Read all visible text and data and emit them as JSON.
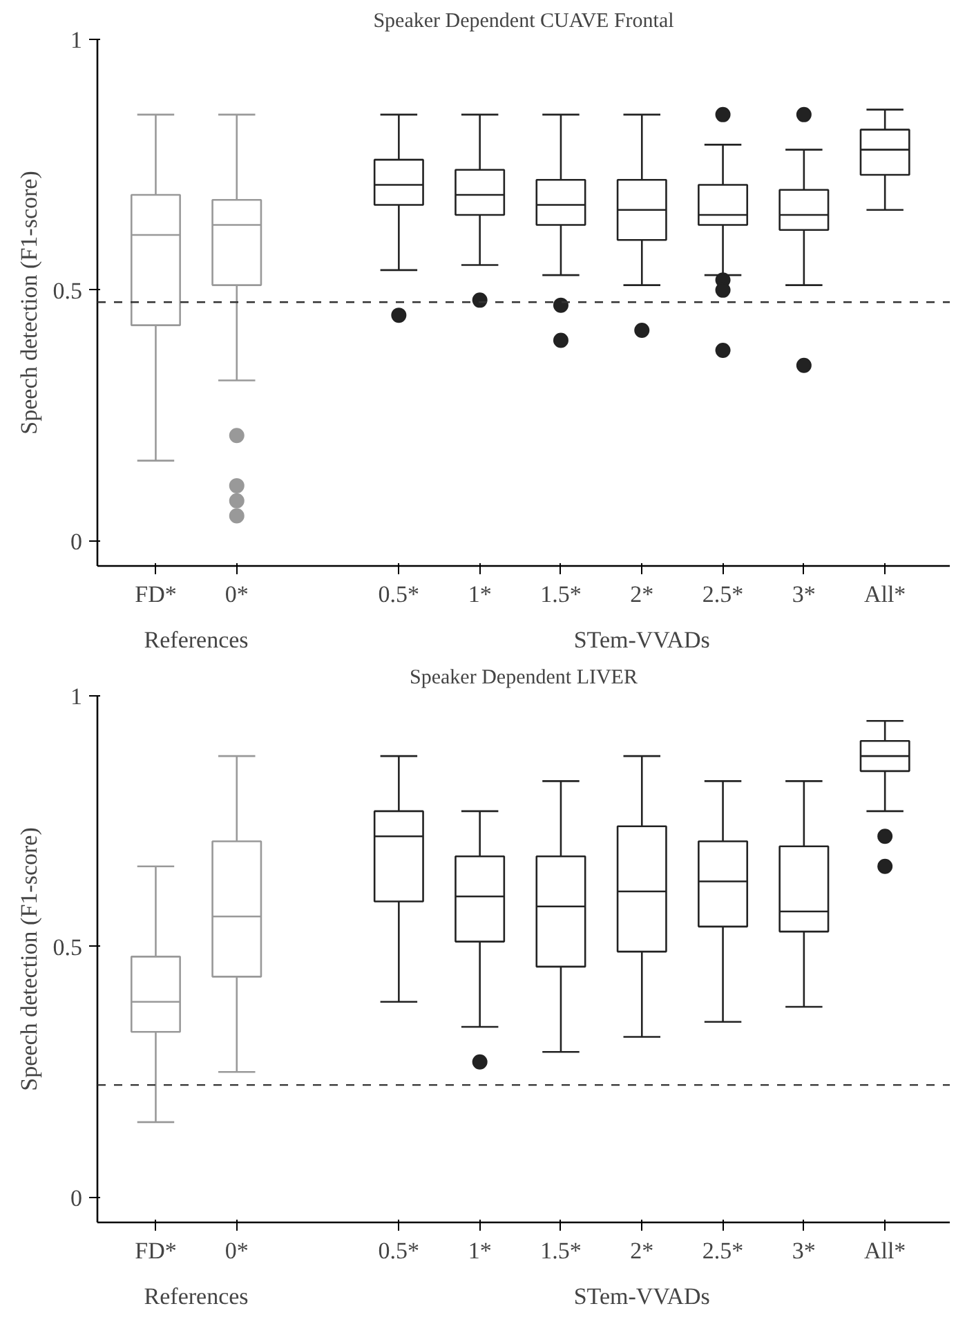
{
  "chart_data": [
    {
      "type": "box",
      "title": "Speaker Dependent CUAVE Frontal",
      "ylabel": "Speech detection (F1-score)",
      "categories": [
        "FD*",
        "0*",
        "0.5*",
        "1*",
        "1.5*",
        "2*",
        "2.5*",
        "3*",
        "All*"
      ],
      "ylim": [
        -0.05,
        1
      ],
      "yticks": [
        0,
        0.5,
        1
      ],
      "grid": false,
      "annotations": [
        "References",
        "STem-VVADs"
      ],
      "ref_lines": [
        {
          "axis": "y",
          "value": 0.476,
          "line_style": "dashed",
          "color": "#333333"
        }
      ],
      "series": [
        {
          "color": "#999999",
          "boxes": [
            {
              "low": 0.16,
              "q1": 0.43,
              "median": 0.61,
              "q3": 0.69,
              "high": 0.85
            },
            {
              "low": 0.32,
              "q1": 0.51,
              "median": 0.63,
              "q3": 0.68,
              "high": 0.85,
              "outliers": [
                0.21,
                0.11,
                0.08,
                0.05
              ]
            },
            null,
            null,
            null,
            null,
            null,
            null,
            null
          ]
        },
        {
          "color": "#222222",
          "boxes": [
            null,
            null,
            {
              "low": 0.54,
              "q1": 0.67,
              "median": 0.71,
              "q3": 0.76,
              "high": 0.85,
              "outliers": [
                0.45
              ]
            },
            {
              "low": 0.55,
              "q1": 0.65,
              "median": 0.69,
              "q3": 0.74,
              "high": 0.85,
              "outliers": [
                0.48
              ]
            },
            {
              "low": 0.53,
              "q1": 0.63,
              "median": 0.67,
              "q3": 0.72,
              "high": 0.85,
              "outliers": [
                0.47,
                0.4
              ]
            },
            {
              "low": 0.51,
              "q1": 0.6,
              "median": 0.66,
              "q3": 0.72,
              "high": 0.85,
              "outliers": [
                0.42
              ]
            },
            {
              "low": 0.53,
              "q1": 0.63,
              "median": 0.65,
              "q3": 0.71,
              "high": 0.79,
              "outliers": [
                0.85,
                0.52,
                0.5,
                0.38
              ]
            },
            {
              "low": 0.51,
              "q1": 0.62,
              "median": 0.65,
              "q3": 0.7,
              "high": 0.78,
              "outliers": [
                0.85,
                0.35
              ]
            },
            {
              "low": 0.66,
              "q1": 0.73,
              "median": 0.78,
              "q3": 0.82,
              "high": 0.86
            }
          ]
        }
      ]
    },
    {
      "type": "box",
      "title": "Speaker Dependent LIVER",
      "ylabel": "Speech detection (F1-score)",
      "categories": [
        "FD*",
        "0*",
        "0.5*",
        "1*",
        "1.5*",
        "2*",
        "2.5*",
        "3*",
        "All*"
      ],
      "ylim": [
        -0.05,
        1
      ],
      "yticks": [
        0,
        0.5,
        1
      ],
      "grid": false,
      "annotations": [
        "References",
        "STem-VVADs"
      ],
      "ref_lines": [
        {
          "axis": "y",
          "value": 0.224,
          "line_style": "dashed",
          "color": "#333333"
        }
      ],
      "series": [
        {
          "color": "#999999",
          "boxes": [
            {
              "low": 0.15,
              "q1": 0.33,
              "median": 0.39,
              "q3": 0.48,
              "high": 0.66
            },
            {
              "low": 0.25,
              "q1": 0.44,
              "median": 0.56,
              "q3": 0.71,
              "high": 0.88
            },
            null,
            null,
            null,
            null,
            null,
            null,
            null
          ]
        },
        {
          "color": "#222222",
          "boxes": [
            null,
            null,
            {
              "low": 0.39,
              "q1": 0.59,
              "median": 0.72,
              "q3": 0.77,
              "high": 0.88
            },
            {
              "low": 0.34,
              "q1": 0.51,
              "median": 0.6,
              "q3": 0.68,
              "high": 0.77,
              "outliers": [
                0.27
              ]
            },
            {
              "low": 0.29,
              "q1": 0.46,
              "median": 0.58,
              "q3": 0.68,
              "high": 0.83
            },
            {
              "low": 0.32,
              "q1": 0.49,
              "median": 0.61,
              "q3": 0.74,
              "high": 0.88
            },
            {
              "low": 0.35,
              "q1": 0.54,
              "median": 0.63,
              "q3": 0.71,
              "high": 0.83
            },
            {
              "low": 0.38,
              "q1": 0.53,
              "median": 0.57,
              "q3": 0.7,
              "high": 0.83
            },
            {
              "low": 0.77,
              "q1": 0.85,
              "median": 0.88,
              "q3": 0.91,
              "high": 0.95,
              "outliers": [
                0.72,
                0.66
              ]
            }
          ]
        }
      ]
    }
  ]
}
